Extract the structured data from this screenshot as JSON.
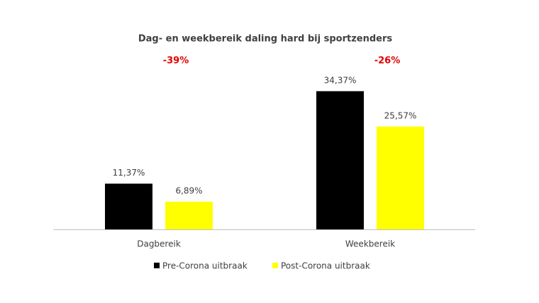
{
  "chart_data": {
    "type": "bar",
    "title": "Dag- en weekbereik daling hard bij sportzenders",
    "categories": [
      "Dagbereik",
      "Weekbereik"
    ],
    "series": [
      {
        "name": "Pre-Corona uitbraak",
        "color": "#000000",
        "values": [
          11.37,
          34.37
        ],
        "value_labels": [
          "11,37%",
          "34,37%"
        ]
      },
      {
        "name": "Post-Corona uitbraak",
        "color": "#ffff00",
        "values": [
          6.89,
          25.57
        ],
        "value_labels": [
          "6,89%",
          "25,57%"
        ]
      }
    ],
    "annotations": [
      "-39%",
      "-26%"
    ],
    "annotation_color": "#e00000",
    "legend": "bottom"
  }
}
